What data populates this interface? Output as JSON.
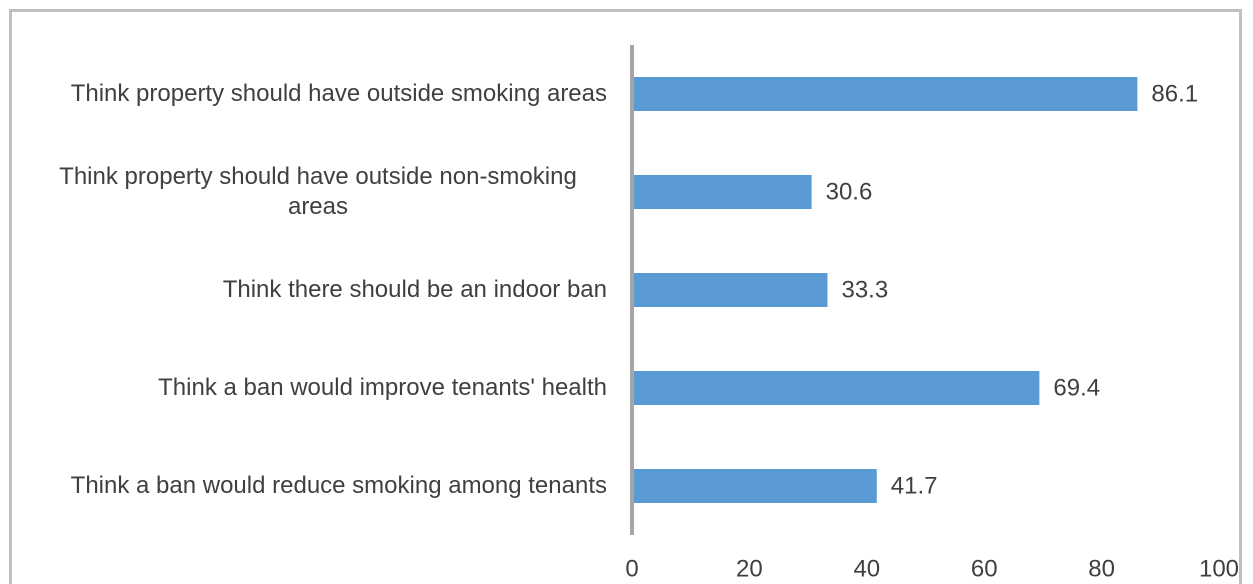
{
  "chart_data": {
    "type": "bar",
    "orientation": "horizontal",
    "categories": [
      "Think property should have outside smoking areas",
      "Think property should have outside non-smoking areas",
      "Think there should be an indoor ban",
      "Think a ban would improve tenants' health",
      "Think a ban would reduce smoking among tenants"
    ],
    "values": [
      86.1,
      30.6,
      33.3,
      69.4,
      41.7
    ],
    "color": "#5b9bd5",
    "xlim": [
      0,
      100
    ],
    "xticks": [
      0,
      20,
      40,
      60,
      80,
      100
    ],
    "grid": false
  }
}
